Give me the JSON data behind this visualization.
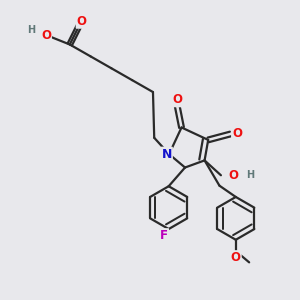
{
  "background_color": "#e8e8ec",
  "bond_color": "#2a2a2a",
  "bond_width": 1.6,
  "atom_colors": {
    "O": "#ee1111",
    "N": "#1111cc",
    "F": "#bb00bb",
    "H_gray": "#607878",
    "C": "#2a2a2a"
  },
  "font_size_atom": 7.5,
  "title": ""
}
